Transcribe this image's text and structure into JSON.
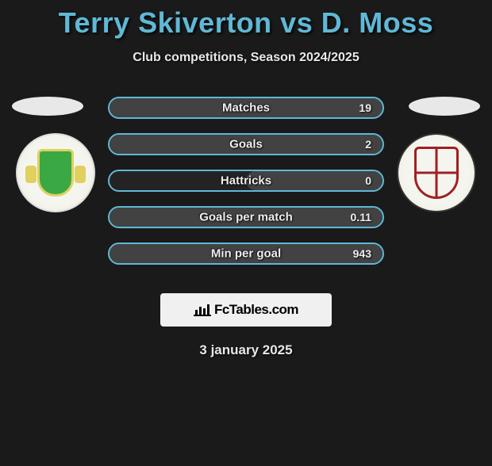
{
  "title": "Terry Skiverton vs D. Moss",
  "subtitle": "Club competitions, Season 2024/2025",
  "colors": {
    "accent": "#5fb8d6",
    "background": "#1a1a1a",
    "bar_fill": "#424242",
    "bar_empty": "#232323",
    "text": "#e8e8e8"
  },
  "stats": [
    {
      "label": "Matches",
      "value": "19",
      "fill_pct": 100
    },
    {
      "label": "Goals",
      "value": "2",
      "fill_pct": 100
    },
    {
      "label": "Hattricks",
      "value": "0",
      "fill_pct": 50
    },
    {
      "label": "Goals per match",
      "value": "0.11",
      "fill_pct": 100
    },
    {
      "label": "Min per goal",
      "value": "943",
      "fill_pct": 100
    }
  ],
  "brand": "FcTables.com",
  "date": "3 january 2025"
}
